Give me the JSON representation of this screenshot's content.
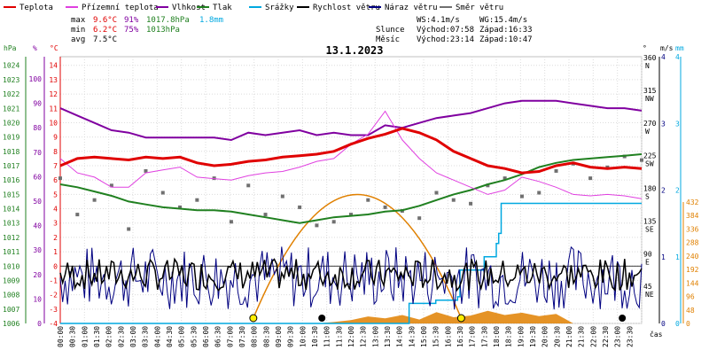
{
  "legend": [
    {
      "label": "Teplota",
      "color": "#e00000"
    },
    {
      "label": "Přízemní teplota",
      "color": "#e040e0"
    },
    {
      "label": "Vlhkost",
      "color": "#8000a0"
    },
    {
      "label": "Tlak",
      "color": "#208020"
    },
    {
      "label": "Srážky",
      "color": "#00a8e0"
    },
    {
      "label": "Rychlost větru",
      "color": "#000000"
    },
    {
      "label": "Náraz větru",
      "color": "#000080"
    },
    {
      "label": "Směr větru",
      "color": "#707070"
    }
  ],
  "stats": {
    "max_label": "max",
    "min_label": "min",
    "avg_label": "avg",
    "max_temp": "9.6°C",
    "max_hum": "91%",
    "max_press": "1017.8hPa",
    "max_rain": "1.8mm",
    "min_temp": "6.2°C",
    "min_hum": "75%",
    "min_press": "1013hPa",
    "avg_temp": "7.5°C"
  },
  "wind_info": {
    "ws": "WS:4.1m/s",
    "wg": "WG:15.4m/s"
  },
  "sun_info": {
    "label": "Slunce",
    "rise": "Východ:07:58",
    "set": "Západ:16:33"
  },
  "moon_info": {
    "label": "Měsíc",
    "rise": "Východ:23:14",
    "set": "Západ:10:47"
  },
  "chart_data": {
    "type": "line",
    "title": "13.1.2023",
    "xlabel": "čas",
    "colors": {
      "temp": "#e00000",
      "ground_temp": "#e040e0",
      "humidity": "#8000a0",
      "pressure": "#208020",
      "rain": "#00a8e0",
      "wind": "#000000",
      "gust": "#000080",
      "direction": "#707070",
      "sun": "#e08000"
    },
    "axes": {
      "hpa": {
        "label": "hPa",
        "ticks": [
          "1006",
          "1007",
          "1008",
          "1009",
          "1010",
          "1011",
          "1012",
          "1013",
          "1014",
          "1015",
          "1016",
          "1017",
          "1018",
          "1019",
          "1020",
          "1021",
          "1022",
          "1023",
          "1024"
        ],
        "range": [
          1006,
          1024.6
        ]
      },
      "percent": {
        "label": "%",
        "ticks": [
          "0",
          "10",
          "20",
          "30",
          "40",
          "50",
          "60",
          "70",
          "80",
          "90",
          "100"
        ],
        "range": [
          0,
          100
        ]
      },
      "celsius": {
        "label": "°C",
        "ticks": [
          "-4",
          "-3",
          "-2",
          "-1",
          "0",
          "1",
          "2",
          "3",
          "4",
          "5",
          "6",
          "7",
          "8",
          "9",
          "10",
          "11",
          "12",
          "13",
          "14"
        ],
        "range": [
          -4,
          14.6
        ]
      },
      "degrees": {
        "label": "°",
        "ticks": [
          {
            "v": "45",
            "d": "NE"
          },
          {
            "v": "90",
            "d": "E"
          },
          {
            "v": "135",
            "d": "SE"
          },
          {
            "v": "180",
            "d": "S"
          },
          {
            "v": "225",
            "d": "SW"
          },
          {
            "v": "270",
            "d": "W"
          },
          {
            "v": "315",
            "d": "NW"
          },
          {
            "v": "360",
            "d": "N"
          }
        ]
      },
      "ms": {
        "label": "m/s",
        "ticks": [
          "0",
          "1",
          "2",
          "3",
          "4"
        ],
        "range": [
          0,
          4
        ]
      },
      "mm": {
        "label": "mm",
        "ticks": [
          "0",
          "1",
          "2",
          "3",
          "4"
        ],
        "range": [
          0,
          4
        ]
      },
      "rad": {
        "ticks": [
          "0",
          "48",
          "96",
          "144",
          "192",
          "240",
          "288",
          "336",
          "384",
          "432"
        ],
        "range": [
          0,
          432
        ]
      }
    },
    "x_ticks": [
      "00:00",
      "00:30",
      "01:00",
      "01:30",
      "02:00",
      "02:30",
      "03:00",
      "03:30",
      "04:00",
      "04:30",
      "05:00",
      "05:30",
      "06:00",
      "06:30",
      "07:00",
      "07:30",
      "08:00",
      "08:30",
      "09:00",
      "09:30",
      "10:00",
      "10:30",
      "11:00",
      "11:30",
      "12:00",
      "12:30",
      "13:00",
      "13:30",
      "14:00",
      "14:30",
      "15:00",
      "15:30",
      "16:00",
      "16:30",
      "17:00",
      "17:30",
      "18:00",
      "18:30",
      "19:00",
      "19:30",
      "20:00",
      "20:30",
      "21:00",
      "21:30",
      "22:00",
      "22:30",
      "23:00",
      "23:30"
    ],
    "x_hours": [
      0,
      1,
      2,
      3,
      4,
      5,
      6,
      7,
      8,
      9,
      10,
      11,
      12,
      13,
      14,
      15,
      16,
      17,
      18,
      19,
      20,
      21,
      22,
      23,
      24
    ],
    "temperature_c": [
      7.0,
      7.5,
      7.6,
      7.5,
      7.4,
      7.6,
      7.5,
      7.6,
      7.2,
      7.0,
      7.1,
      7.3,
      7.4,
      7.6,
      7.7,
      7.8,
      8.0,
      8.5,
      8.9,
      9.2,
      9.6,
      9.3,
      8.8,
      8.0,
      7.5,
      7.0,
      6.8,
      6.5,
      6.6,
      7.0,
      7.2,
      6.9,
      6.8,
      6.9,
      6.8
    ],
    "ground_temp_c": [
      7.5,
      6.5,
      6.2,
      5.5,
      5.5,
      6.5,
      6.7,
      6.9,
      6.2,
      6.1,
      6.0,
      6.3,
      6.5,
      6.6,
      6.9,
      7.3,
      7.5,
      8.5,
      9.2,
      10.8,
      8.8,
      7.5,
      6.5,
      6.0,
      5.5,
      5.0,
      5.3,
      6.2,
      5.9,
      5.5,
      5.0,
      4.9,
      5.0,
      4.9,
      4.7
    ],
    "humidity_pct": [
      88,
      85,
      82,
      79,
      78,
      76,
      76,
      76,
      76,
      76,
      75,
      78,
      77,
      78,
      79,
      77,
      78,
      77,
      77,
      81,
      80,
      82,
      84,
      85,
      86,
      88,
      90,
      91,
      91,
      91,
      90,
      89,
      88,
      88,
      87
    ],
    "pressure_hpa": [
      1015.7,
      1015.5,
      1015.2,
      1014.9,
      1014.5,
      1014.3,
      1014.1,
      1014.0,
      1013.9,
      1013.9,
      1013.8,
      1013.6,
      1013.4,
      1013.2,
      1013.0,
      1013.2,
      1013.4,
      1013.5,
      1013.6,
      1013.8,
      1013.9,
      1014.2,
      1014.6,
      1015.0,
      1015.3,
      1015.7,
      1016.0,
      1016.4,
      1016.9,
      1017.2,
      1017.4,
      1017.5,
      1017.6,
      1017.7,
      1017.8
    ],
    "rain_mm": [
      0,
      0,
      0,
      0,
      0,
      0,
      0,
      0,
      0,
      0,
      0,
      0,
      0,
      0,
      0,
      0,
      0,
      0,
      0,
      0,
      0,
      0,
      0.3,
      0.35,
      0.4,
      0.8,
      1.0,
      1.2,
      1.35,
      1.8,
      1.8,
      1.8,
      1.8,
      1.8,
      1.8
    ],
    "rain_x_hours": [
      0,
      0.7,
      1.4,
      2.1,
      2.8,
      3.5,
      4.2,
      4.9,
      5.6,
      6.3,
      7.0,
      7.7,
      8.4,
      9.1,
      9.8,
      10.5,
      11.2,
      11.9,
      12.6,
      13.3,
      14.0,
      14.3,
      14.4,
      15.5,
      16.4,
      16.5,
      17.5,
      18.0,
      18.1,
      18.2,
      19.0,
      20.0,
      21.0,
      22.0,
      24.0
    ],
    "solar_rad": [
      0,
      0,
      0,
      0,
      0,
      0,
      0,
      0,
      0,
      0,
      0,
      0,
      0,
      0,
      0,
      0,
      5,
      12,
      25,
      18,
      30,
      14,
      40,
      22,
      28,
      45,
      30,
      38,
      26,
      34,
      0,
      0,
      0,
      0,
      0
    ],
    "sun_arc": {
      "rise_hour": 7.97,
      "set_hour": 16.55
    },
    "wind_direction_deg": [
      200,
      150,
      170,
      190,
      130,
      210,
      180,
      160,
      170,
      200,
      140,
      190,
      150,
      175,
      160,
      135,
      140,
      150,
      170,
      160,
      155,
      145,
      180,
      170,
      165,
      190,
      200,
      175,
      180,
      210,
      220,
      200,
      215,
      230,
      225
    ]
  }
}
